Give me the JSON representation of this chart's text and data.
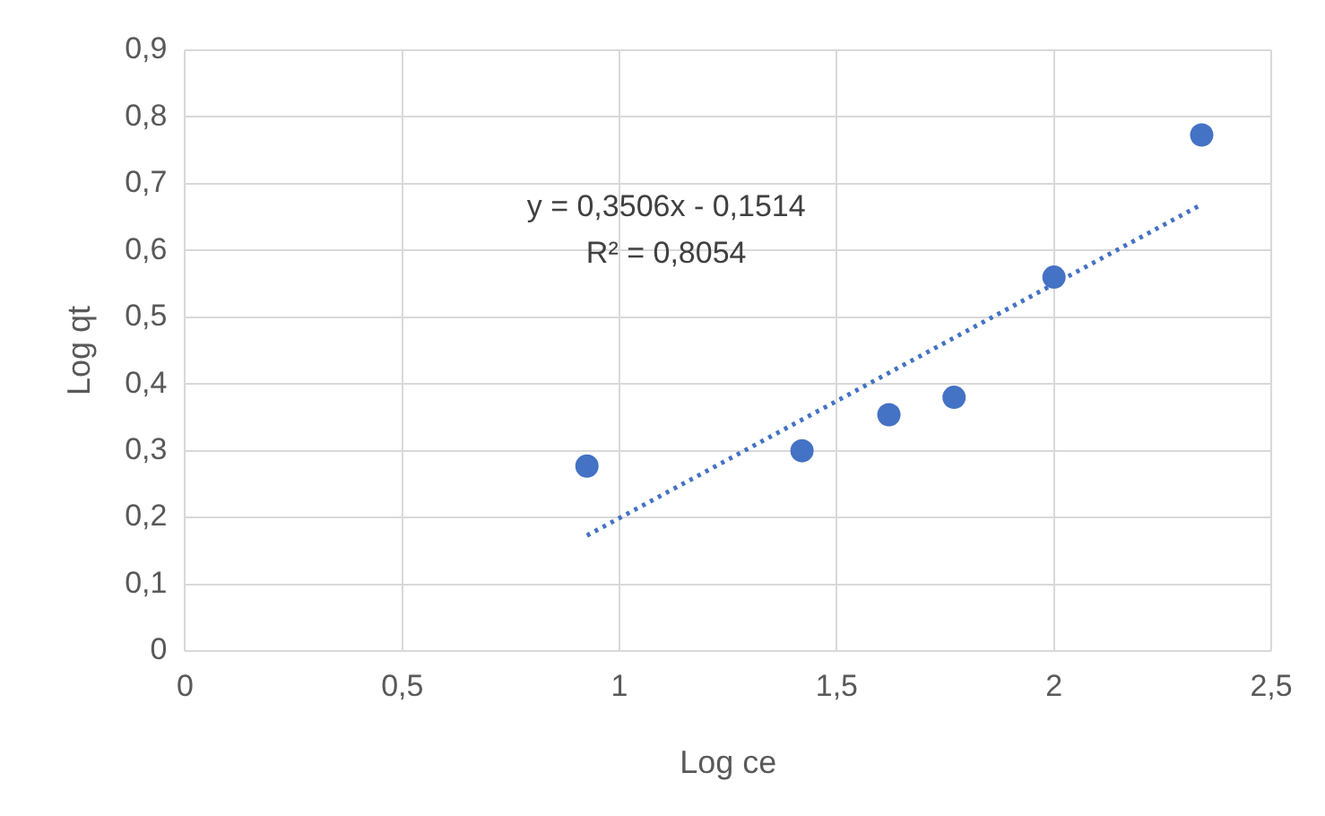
{
  "chart_data": {
    "type": "scatter",
    "xlabel": "Log ce",
    "ylabel": "Log qt",
    "xlim": [
      0,
      2.5
    ],
    "xticks": [
      0,
      {
        "value": 0.5,
        "label": "0,5"
      },
      1,
      {
        "value": 1.5,
        "label": "1,5"
      },
      2,
      {
        "value": 2.5,
        "label": "2,5"
      }
    ],
    "ylim": [
      0,
      0.9
    ],
    "yticks": [
      0,
      {
        "value": 0.1,
        "label": "0,1"
      },
      {
        "value": 0.2,
        "label": "0,2"
      },
      {
        "value": 0.3,
        "label": "0,3"
      },
      {
        "value": 0.4,
        "label": "0,4"
      },
      {
        "value": 0.5,
        "label": "0,5"
      },
      {
        "value": 0.6,
        "label": "0,6"
      },
      {
        "value": 0.7,
        "label": "0,7"
      },
      {
        "value": 0.8,
        "label": "0,8"
      },
      {
        "value": 0.9,
        "label": "0,9"
      }
    ],
    "grid": true,
    "marker": "circle",
    "series": [
      {
        "type": "scatter",
        "color": "#4472c4",
        "x": [
          0.925,
          1.42,
          1.62,
          1.77,
          2.0,
          2.34
        ],
        "values": [
          0.277,
          0.3,
          0.354,
          0.38,
          0.56,
          0.773
        ]
      },
      {
        "type": "line",
        "color": "#4472c4",
        "line_style": "dotted",
        "marker": "none",
        "x": [
          0.925,
          2.34
        ],
        "values": [
          0.173,
          0.669
        ]
      }
    ],
    "annotations": [
      "y = 0,3506x - 0,1514",
      "R² = 0,8054"
    ]
  }
}
